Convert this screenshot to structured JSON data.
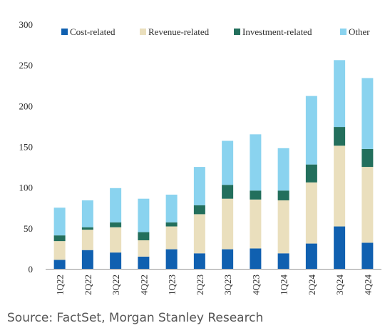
{
  "chart_data": {
    "type": "bar",
    "stacked": true,
    "title": "",
    "xlabel": "",
    "ylabel": "",
    "ylim": [
      0,
      300
    ],
    "yticks": [
      0,
      50,
      100,
      150,
      200,
      250,
      300
    ],
    "grid": false,
    "legend_position": "top",
    "categories": [
      "1Q22",
      "2Q22",
      "3Q22",
      "4Q22",
      "1Q23",
      "2Q23",
      "3Q23",
      "4Q23",
      "1Q24",
      "2Q24",
      "3Q24",
      "4Q24"
    ],
    "series": [
      {
        "name": "Cost-related",
        "color": "#1060b0",
        "values": [
          11,
          23,
          20,
          15,
          24,
          19,
          24,
          25,
          19,
          31,
          52,
          32
        ]
      },
      {
        "name": "Revenue-related",
        "color": "#eadfbd",
        "values": [
          23,
          25,
          31,
          20,
          28,
          48,
          62,
          60,
          65,
          75,
          99,
          93
        ]
      },
      {
        "name": "Investment-related",
        "color": "#236f5c",
        "values": [
          7,
          3,
          6,
          10,
          5,
          11,
          17,
          11,
          12,
          22,
          23,
          22
        ]
      },
      {
        "name": "Other",
        "color": "#8ad3ef",
        "values": [
          34,
          33,
          42,
          41,
          34,
          47,
          54,
          69,
          52,
          84,
          82,
          87
        ]
      }
    ]
  },
  "source": "Source: FactSet, Morgan Stanley Research"
}
